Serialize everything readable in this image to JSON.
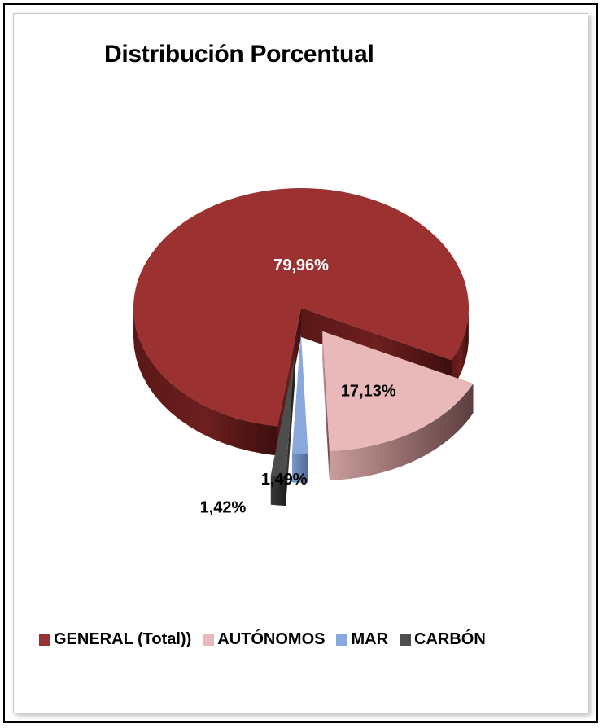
{
  "chart_data": {
    "type": "pie",
    "title": "Distribución Porcentual",
    "categories": [
      "GENERAL (Total))",
      "AUTÓNOMOS",
      "MAR",
      "CARBÓN"
    ],
    "values": [
      79.96,
      17.13,
      1.49,
      1.42
    ],
    "data_labels": [
      "79,96%",
      "17,13%",
      "1,49%",
      "1,42%"
    ],
    "colors": [
      "#9b3130",
      "#e8b9b8",
      "#89a8dd",
      "#4d4d4d"
    ],
    "style": "3d-exploded",
    "legend_position": "bottom"
  }
}
